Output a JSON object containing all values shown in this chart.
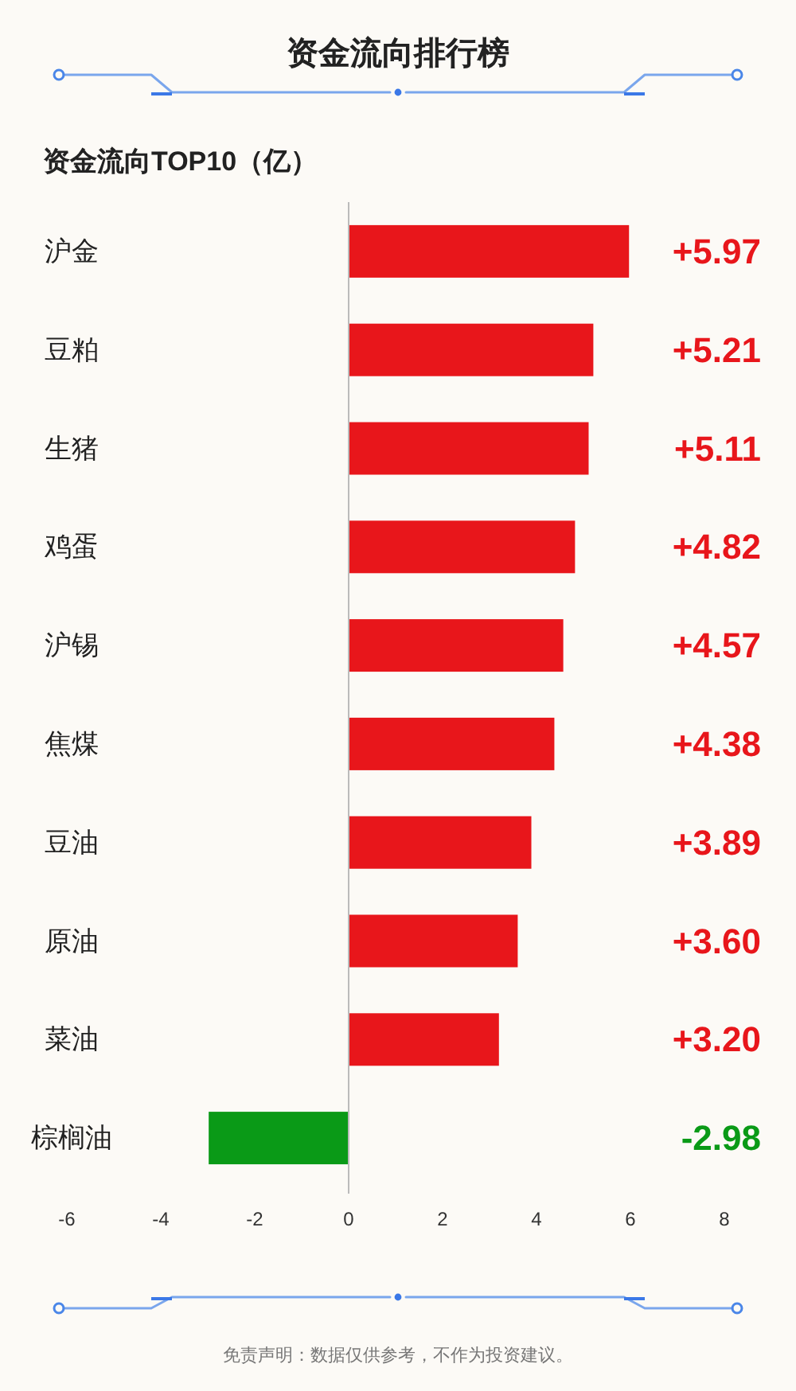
{
  "chart_data": {
    "type": "bar",
    "orientation": "horizontal",
    "title": "资金流向排行榜",
    "subtitle": "资金流向TOP10（亿）",
    "categories": [
      "沪金",
      "豆粕",
      "生猪",
      "鸡蛋",
      "沪锡",
      "焦煤",
      "豆油",
      "原油",
      "菜油",
      "棕榈油"
    ],
    "values": [
      5.97,
      5.21,
      5.11,
      4.82,
      4.57,
      4.38,
      3.89,
      3.6,
      3.2,
      -2.98
    ],
    "colors": [
      "#e8161b",
      "#e8161b",
      "#e8161b",
      "#e8161b",
      "#e8161b",
      "#e8161b",
      "#e8161b",
      "#e8161b",
      "#e8161b",
      "#0a9a17"
    ],
    "value_labels": [
      "+5.97",
      "+5.21",
      "+5.11",
      "+4.82",
      "+4.57",
      "+4.38",
      "+3.89",
      "+3.60",
      "+3.20",
      "-2.98"
    ],
    "xlim": [
      -6,
      8
    ],
    "xticks": [
      -6,
      -4,
      -2,
      0,
      2,
      4,
      6,
      8
    ],
    "annotations": [
      "免责声明：数据仅供参考，不作为投资建议。"
    ]
  }
}
